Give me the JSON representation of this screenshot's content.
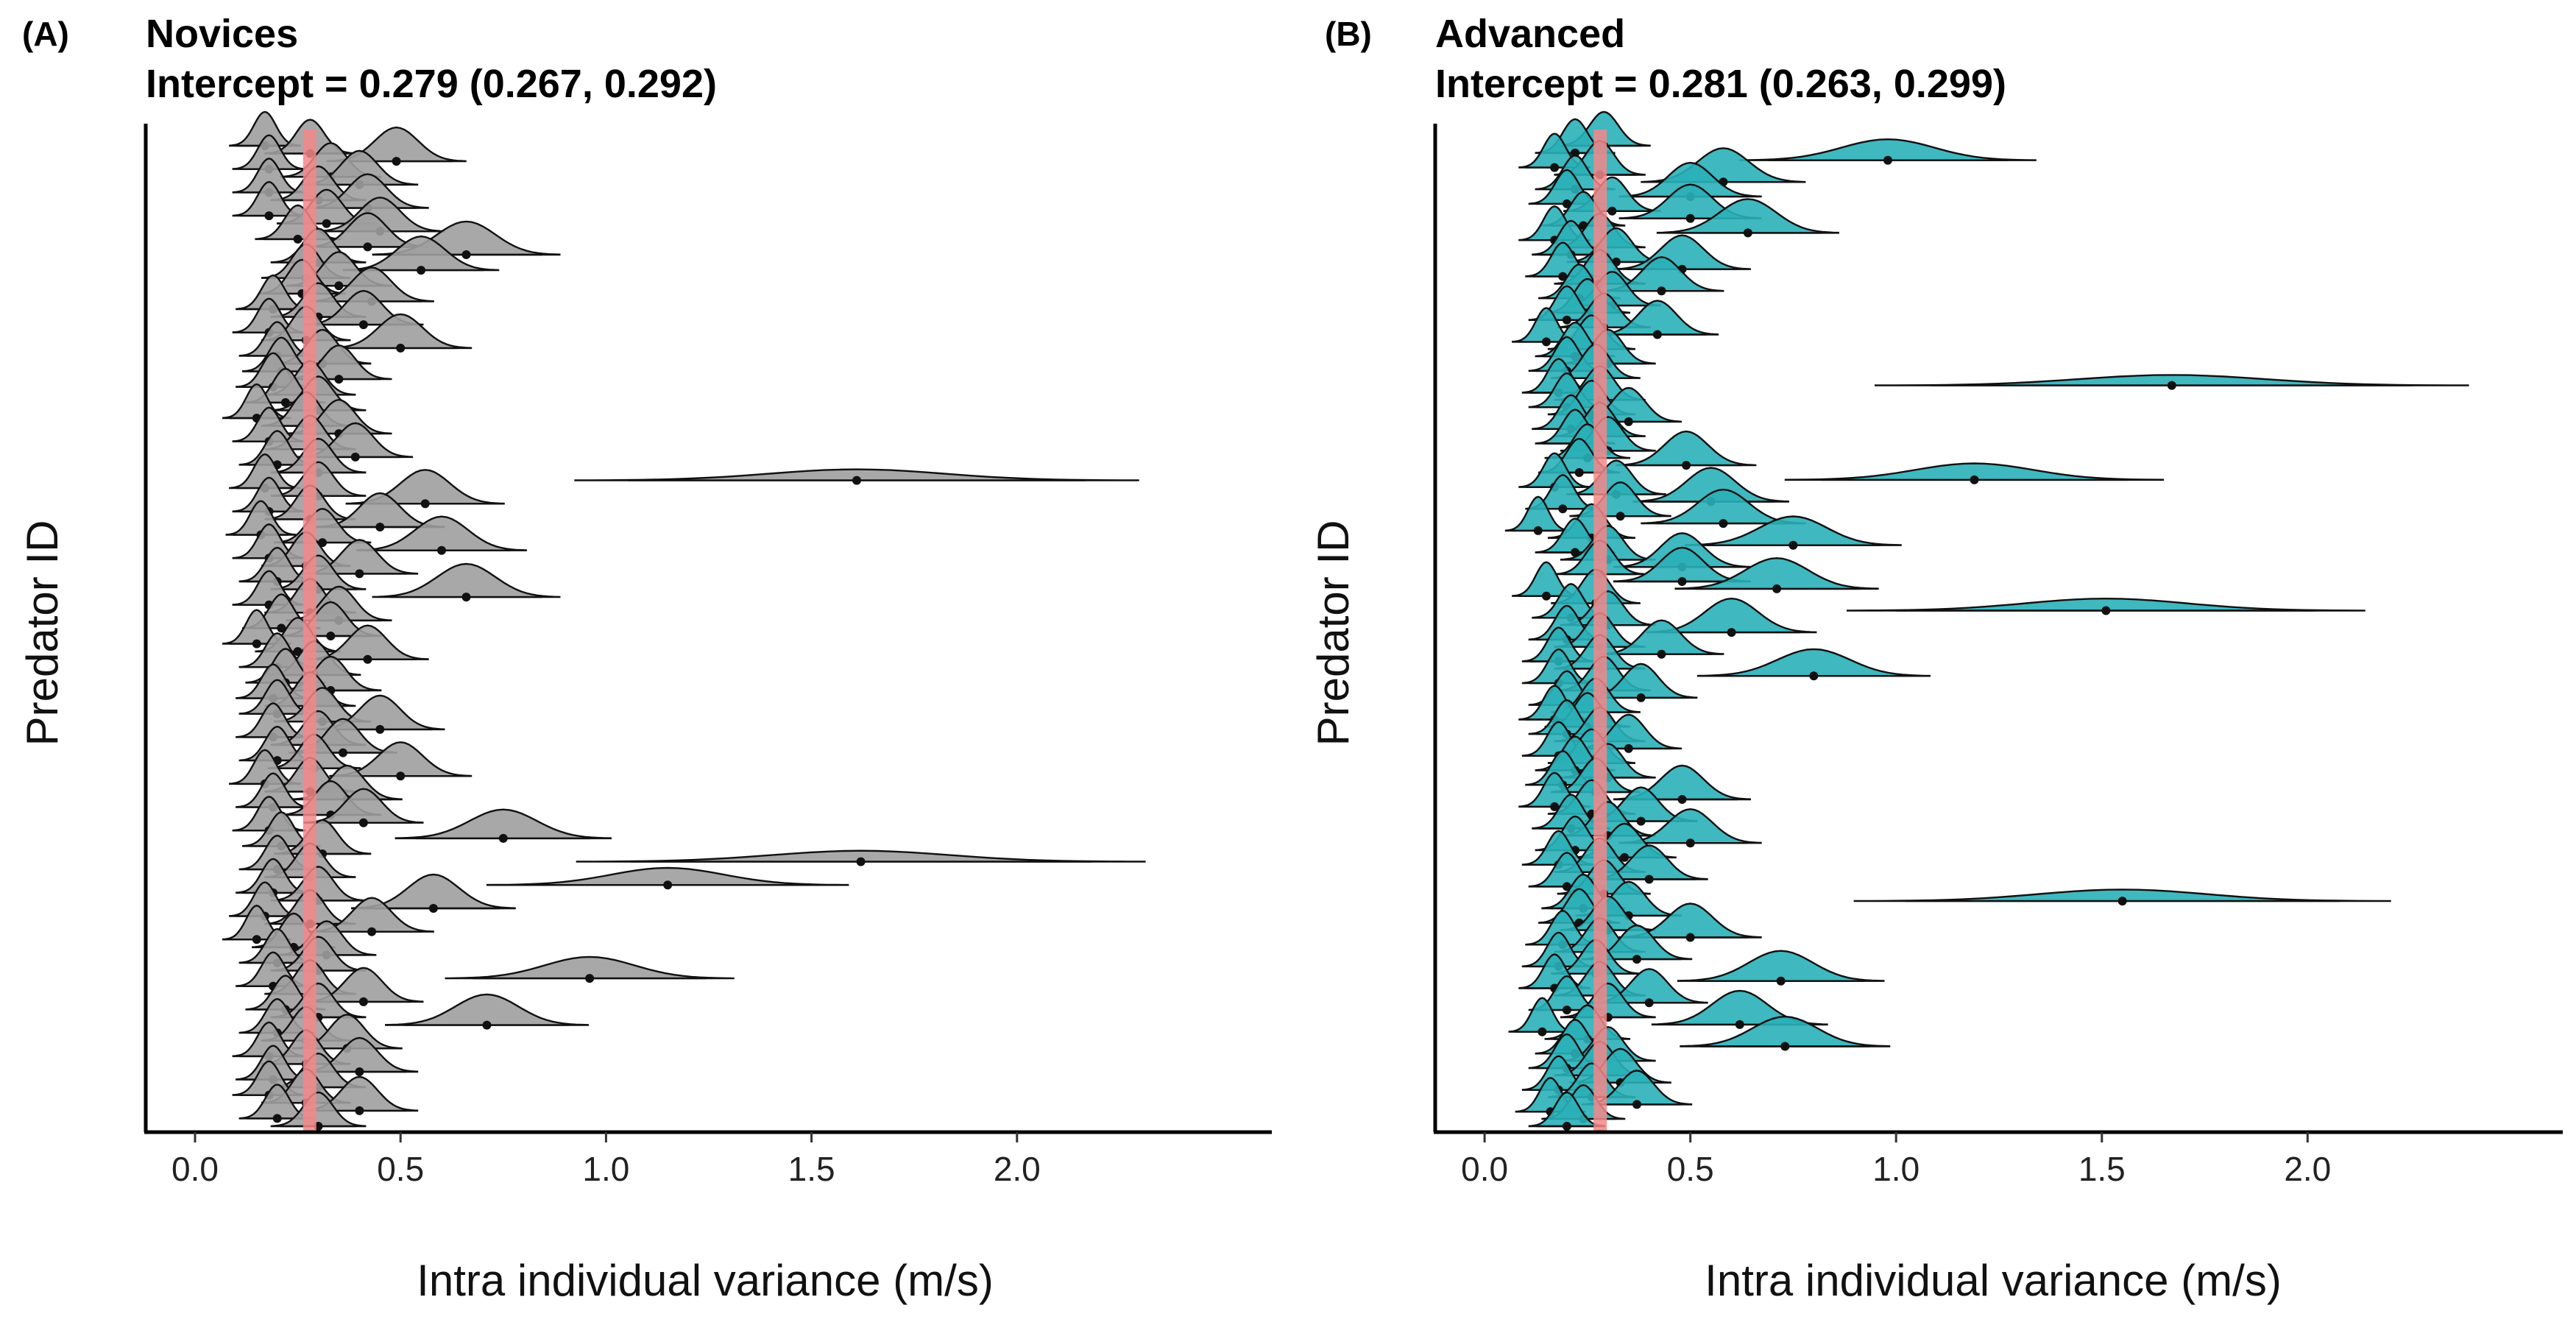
{
  "chart_data": [
    {
      "type": "density-ridge",
      "panel_label": "(A)",
      "title": "Novices",
      "subtitle": "Intercept = 0.279 (0.267, 0.292)",
      "intercept": 0.279,
      "xlabel": "Intra individual variance (m/s)",
      "ylabel": "Predator ID",
      "xlim": [
        -0.12,
        2.62
      ],
      "x_ticks": [
        "0.0",
        "0.5",
        "1.0",
        "1.5",
        "2.0"
      ],
      "x_tick_values": [
        0,
        0.5,
        1.0,
        1.5,
        2.0
      ],
      "fill_color": "#9e9e9e",
      "intercept_color": "#f4878a",
      "grid": false,
      "legend": "none",
      "individuals": [
        0.17,
        0.28,
        0.49,
        0.18,
        0.33,
        0.4,
        0.18,
        0.3,
        0.42,
        0.18,
        0.32,
        0.45,
        0.25,
        0.42,
        0.66,
        0.3,
        0.55,
        0.27,
        0.35,
        0.26,
        0.43,
        0.19,
        0.3,
        0.41,
        0.18,
        0.27,
        0.5,
        0.2,
        0.31,
        0.21,
        0.35,
        0.19,
        0.28,
        0.22,
        0.3,
        0.15,
        0.27,
        0.35,
        0.18,
        0.28,
        0.39,
        0.2,
        0.3,
        1.61,
        0.17,
        0.3,
        0.56,
        0.18,
        0.28,
        0.45,
        0.16,
        0.31,
        0.6,
        0.18,
        0.27,
        0.4,
        0.2,
        0.3,
        0.66,
        0.18,
        0.28,
        0.35,
        0.21,
        0.33,
        0.15,
        0.25,
        0.42,
        0.2,
        0.29,
        0.22,
        0.33,
        0.19,
        0.28,
        0.2,
        0.31,
        0.45,
        0.19,
        0.3,
        0.36,
        0.2,
        0.29,
        0.5,
        0.17,
        0.28,
        0.37,
        0.19,
        0.33,
        0.41,
        0.18,
        0.75,
        0.21,
        0.31,
        1.62,
        0.2,
        0.28,
        1.15,
        0.19,
        0.3,
        0.58,
        0.17,
        0.28,
        0.43,
        0.15,
        0.24,
        0.32,
        0.2,
        0.3,
        0.96,
        0.19,
        0.28,
        0.41,
        0.22,
        0.3,
        0.71,
        0.2,
        0.27,
        0.37,
        0.18,
        0.27,
        0.4,
        0.19,
        0.3,
        0.18,
        0.27,
        0.4,
        0.2,
        0.3
      ]
    },
    {
      "type": "density-ridge",
      "panel_label": "(B)",
      "title": "Advanced",
      "subtitle": "Intercept = 0.281 (0.263, 0.299)",
      "intercept": 0.281,
      "xlabel": "Intra individual variance (m/s)",
      "ylabel": "Predator ID",
      "xlim": [
        -0.12,
        2.62
      ],
      "x_ticks": [
        "0.0",
        "0.5",
        "1.0",
        "1.5",
        "2.0"
      ],
      "x_tick_values": [
        0,
        0.5,
        1.0,
        1.5,
        2.0
      ],
      "fill_color": "#2ab0b8",
      "intercept_color": "#f4878a",
      "grid": false,
      "legend": "none",
      "individuals": [
        0.29,
        0.22,
        0.98,
        0.17,
        0.28,
        0.58,
        0.22,
        0.5,
        0.2,
        0.31,
        0.5,
        0.24,
        0.64,
        0.17,
        0.28,
        0.21,
        0.32,
        0.48,
        0.19,
        0.28,
        0.43,
        0.23,
        0.31,
        0.25,
        0.2,
        0.29,
        0.42,
        0.15,
        0.26,
        0.22,
        0.3,
        0.2,
        0.27,
        1.67,
        0.18,
        0.28,
        0.2,
        0.26,
        0.35,
        0.21,
        0.28,
        0.22,
        0.3,
        0.25,
        0.49,
        0.23,
        1.19,
        0.17,
        0.32,
        0.55,
        0.19,
        0.33,
        0.58,
        0.13,
        0.26,
        0.75,
        0.22,
        0.3,
        0.48,
        0.28,
        0.48,
        0.71,
        0.15,
        0.27,
        1.51,
        0.21,
        0.3,
        0.6,
        0.2,
        0.28,
        0.43,
        0.18,
        0.28,
        0.8,
        0.18,
        0.29,
        0.38,
        0.2,
        0.27,
        0.17,
        0.25,
        0.2,
        0.28,
        0.35,
        0.18,
        0.26,
        0.22,
        0.3,
        0.19,
        0.27,
        0.48,
        0.17,
        0.26,
        0.38,
        0.21,
        0.3,
        0.5,
        0.22,
        0.34,
        0.18,
        0.28,
        0.4,
        0.2,
        0.29,
        1.55,
        0.24,
        0.35,
        0.23,
        0.3,
        0.5,
        0.19,
        0.28,
        0.37,
        0.18,
        0.27,
        0.72,
        0.17,
        0.28,
        0.4,
        0.2,
        0.3,
        0.62,
        0.14,
        0.25,
        0.73,
        0.22,
        0.3,
        0.2,
        0.28,
        0.33,
        0.18,
        0.26,
        0.37,
        0.16,
        0.24,
        0.2
      ]
    }
  ]
}
